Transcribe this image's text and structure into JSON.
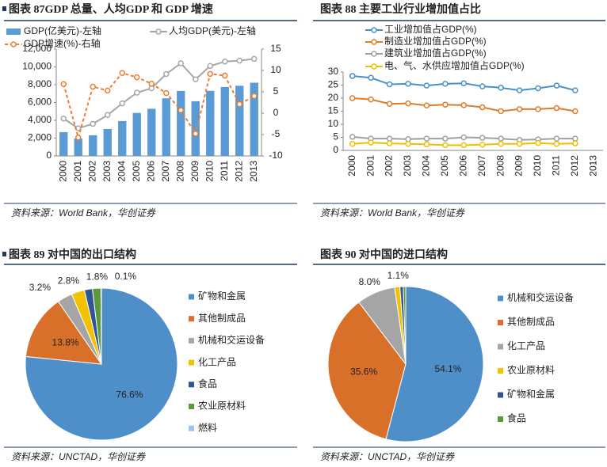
{
  "chart_data": [
    {
      "type": "combo",
      "title": "图表 87GDP 总量、人均GDP 和 GDP 增速",
      "source": "资料来源：World Bank，华创证券",
      "categories": [
        "2000",
        "2001",
        "2002",
        "2003",
        "2004",
        "2005",
        "2006",
        "2007",
        "2008",
        "2009",
        "2010",
        "2011",
        "2012",
        "2013"
      ],
      "series": [
        {
          "name": "GDP(亿美元)-左轴",
          "type": "bar",
          "color": "#5b9bd5",
          "values": [
            2670,
            1960,
            2320,
            3030,
            3920,
            4830,
            5300,
            6470,
            7300,
            6140,
            7310,
            7740,
            7880,
            8220
          ]
        },
        {
          "name": "人均GDP(美元)-左轴",
          "type": "line",
          "color": "#a6a6a6",
          "values": [
            4200,
            3100,
            3600,
            4600,
            5900,
            7100,
            7600,
            9200,
            10400,
            8600,
            10100,
            10600,
            10700,
            10900
          ]
        },
        {
          "name": "GDP增速(%)-右轴",
          "type": "line",
          "dashed": true,
          "axis": "y2",
          "color": "#ed7d31",
          "values": [
            6.8,
            -5.7,
            6.2,
            5.3,
            9.4,
            8.4,
            6.9,
            4.7,
            0.7,
            -4.8,
            9.2,
            8.8,
            2.1,
            4.0
          ]
        }
      ],
      "ylim": [
        0,
        12000
      ],
      "yticks": [
        0,
        {
          "value": 2000,
          "label": "2,000"
        },
        {
          "value": 4000,
          "label": "4,000"
        },
        {
          "value": 6000,
          "label": "6,000"
        },
        {
          "value": 8000,
          "label": "8,000"
        },
        {
          "value": 10000,
          "label": "10,000"
        },
        {
          "value": 12000,
          "label": "12,000"
        }
      ],
      "y2lim": [
        -10,
        15
      ],
      "y2ticks": [
        -10,
        -5,
        0,
        5,
        10,
        15
      ],
      "grid": false
    },
    {
      "type": "line",
      "title": "图表 88 主要工业行业增加值占比",
      "source": "资料来源：World Bank，华创证券",
      "categories": [
        "2000",
        "2001",
        "2002",
        "2003",
        "2004",
        "2005",
        "2006",
        "2007",
        "2008",
        "2009",
        "2010",
        "2011",
        "2012",
        "2013"
      ],
      "series": [
        {
          "name": "工业增加值占GDP(%)",
          "color": "#4a90c8",
          "values": [
            28.5,
            27.8,
            25.3,
            25.5,
            24.8,
            25.5,
            25.7,
            24.5,
            24,
            23,
            23.8,
            24.8,
            23,
            null
          ]
        },
        {
          "name": "制造业增加值占GDP(%)",
          "color": "#e07b2a",
          "values": [
            20,
            19.5,
            17.8,
            18,
            17.2,
            17.5,
            17.3,
            16.5,
            15,
            15.8,
            15.8,
            16.2,
            15,
            null
          ]
        },
        {
          "name": "建筑业增加值占GDP(%)",
          "color": "#a0a0a0",
          "values": [
            5.2,
            4.5,
            4.5,
            4.3,
            4.5,
            4.5,
            5,
            4.8,
            4.5,
            4,
            4.2,
            4.5,
            4.5,
            null
          ]
        },
        {
          "name": "电、气、水供应增加值占GDP(%)",
          "color": "#f0c000",
          "values": [
            2.5,
            3,
            2.7,
            2.5,
            2.3,
            2,
            2,
            2.2,
            2.5,
            2.5,
            2.8,
            2.5,
            2.7,
            null
          ]
        }
      ],
      "ylim": [
        0,
        30
      ],
      "yticks": [
        0,
        5,
        10,
        15,
        20,
        25,
        30
      ],
      "grid": false
    },
    {
      "type": "pie",
      "title": "图表 89 对中国的出口结构",
      "source": "资料来源：UNCTAD，华创证券",
      "categories": [
        "矿物和金属",
        "其他制成品",
        "机械和交运设备",
        "化工产品",
        "食品",
        "农业原材料",
        "燃料"
      ],
      "values": [
        76.6,
        13.8,
        3.2,
        2.8,
        1.7,
        1.8,
        0.1
      ],
      "value_labels": [
        "76.6%",
        "13.8%",
        "3.2%",
        "2.8%",
        null,
        "1.8%",
        "0.1%"
      ],
      "colors": [
        "#4f8fc9",
        "#d9702a",
        "#a5a5a5",
        "#f2c200",
        "#2f5597",
        "#5a9a3a",
        "#9dc3e6"
      ]
    },
    {
      "type": "pie",
      "title": "图表 90 对中国的进口结构",
      "source": "资料来源：UNCTAD，华创证券",
      "categories": [
        "机械和交运设备",
        "其他制成品",
        "化工产品",
        "农业原材料",
        "矿物和金属",
        "食品"
      ],
      "values": [
        54.1,
        35.6,
        8,
        1.1,
        0.7,
        0.5
      ],
      "value_labels": [
        "54.1%",
        "35.6%",
        "8.0%",
        "1.1%",
        null,
        null
      ],
      "colors": [
        "#4f8fc9",
        "#d9702a",
        "#a5a5a5",
        "#f2c200",
        "#2f5597",
        "#5a9a3a"
      ]
    }
  ]
}
